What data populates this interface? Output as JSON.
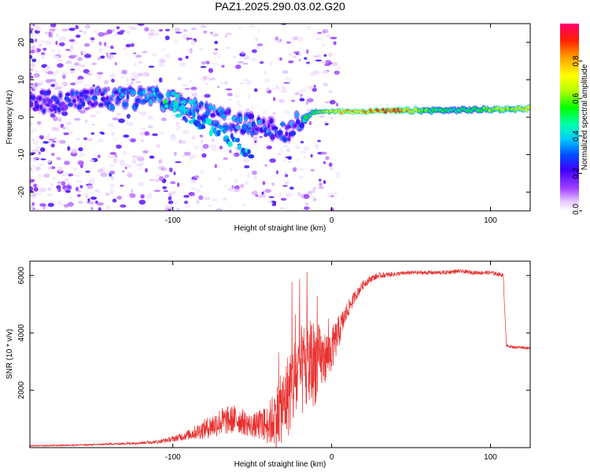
{
  "figure": {
    "title": "PAZ1.2025.290.03.02.G20"
  },
  "chart_data": [
    {
      "type": "heatmap",
      "title": "PAZ1.2025.290.03.02.G20",
      "xlabel": "Height of straight line (km)",
      "ylabel": "Frequency (Hz)",
      "xlim": [
        -190,
        125
      ],
      "ylim": [
        -25,
        25
      ],
      "xticks": [
        -100,
        0,
        100
      ],
      "yticks": [
        -20,
        -10,
        0,
        10,
        20
      ],
      "colorbar": {
        "label": "Normalized spectral amplitude",
        "range": [
          0,
          1
        ],
        "ticks": [
          "0.0",
          "0.2",
          "0.4",
          "0.6",
          "0.8"
        ],
        "tick_values": [
          0,
          0.2,
          0.4,
          0.6,
          0.8
        ],
        "colormap": [
          "#ffffff",
          "#e8c8ff",
          "#a040ff",
          "#6a00e0",
          "#0000ff",
          "#00b8ff",
          "#00ffc8",
          "#00ff00",
          "#c8ff00",
          "#ffff00",
          "#ffa000",
          "#ff2000",
          "#ff0080"
        ]
      },
      "ridge": {
        "x": [
          -190,
          -160,
          -140,
          -120,
          -100,
          -90,
          -80,
          -70,
          -60,
          -50,
          -40,
          -30,
          -25,
          -20,
          -15,
          -10,
          0,
          20,
          40,
          60,
          80,
          100,
          125
        ],
        "y": [
          4,
          4.5,
          4.8,
          5,
          5,
          3,
          1,
          0,
          -1,
          -2,
          -3,
          -4.5,
          -3,
          -1,
          0.5,
          1.5,
          1.5,
          1.6,
          1.7,
          1.8,
          1.9,
          2.1,
          2.3
        ],
        "amplitude": [
          0.2,
          0.25,
          0.3,
          0.35,
          0.45,
          0.35,
          0.3,
          0.3,
          0.3,
          0.3,
          0.3,
          0.25,
          0.3,
          0.35,
          0.45,
          0.5,
          0.7,
          0.8,
          0.9,
          0.55,
          0.45,
          0.6,
          0.75
        ]
      },
      "branch": {
        "x": [
          -100,
          -90,
          -80,
          -70,
          -60,
          -55,
          -50
        ],
        "y": [
          3,
          0,
          -2,
          -4,
          -7,
          -9.5,
          -11
        ]
      }
    },
    {
      "type": "line",
      "xlabel": "Height of straight line (km)",
      "ylabel": "SNR (10 * v/v)",
      "xlim": [
        -190,
        125
      ],
      "ylim": [
        0,
        6500
      ],
      "xticks": [
        -100,
        0,
        100
      ],
      "yticks": [
        2000,
        4000,
        6000
      ],
      "series": [
        {
          "name": "SNR",
          "color": "#e8312f",
          "x": [
            -190,
            -170,
            -150,
            -130,
            -110,
            -100,
            -90,
            -80,
            -70,
            -60,
            -50,
            -40,
            -35,
            -30,
            -25,
            -20,
            -15,
            -10,
            -5,
            0,
            5,
            10,
            15,
            20,
            25,
            30,
            40,
            50,
            60,
            70,
            80,
            90,
            100,
            105,
            108,
            110,
            115,
            120,
            125
          ],
          "y": [
            60,
            80,
            100,
            140,
            200,
            300,
            450,
            650,
            900,
            1000,
            750,
            800,
            1100,
            1500,
            2200,
            2600,
            2800,
            3000,
            3100,
            3400,
            4100,
            4800,
            5300,
            5700,
            5900,
            6000,
            6050,
            6100,
            6100,
            6100,
            6150,
            6100,
            6100,
            6050,
            6000,
            3550,
            3500,
            3500,
            3450
          ],
          "noise": [
            20,
            25,
            30,
            40,
            60,
            100,
            180,
            350,
            500,
            500,
            400,
            700,
            1100,
            1300,
            1700,
            1600,
            1700,
            1500,
            900,
            800,
            550,
            300,
            200,
            150,
            120,
            100,
            80,
            70,
            70,
            70,
            70,
            70,
            70,
            70,
            70,
            50,
            50,
            50,
            50
          ]
        }
      ]
    }
  ]
}
